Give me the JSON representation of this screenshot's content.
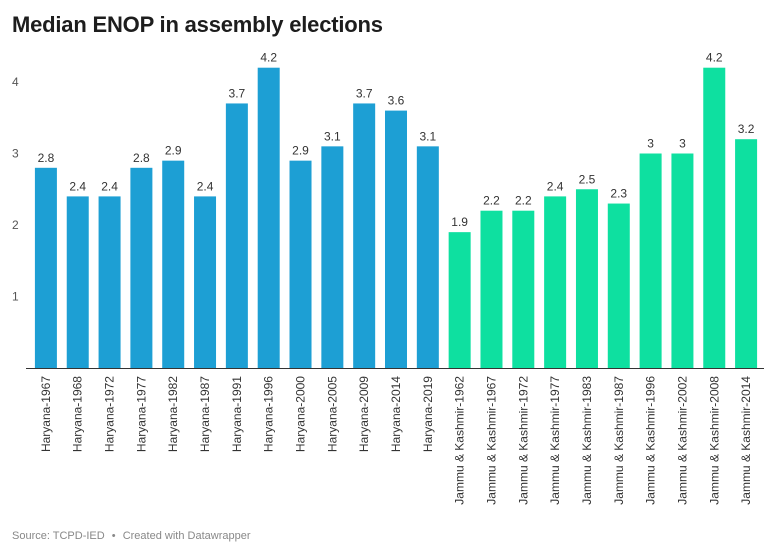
{
  "colors": {
    "haryana": "#1d9fd4",
    "jammu_kashmir": "#0ee0a0",
    "baseline": "#333333",
    "gridline": "#e6e6e6"
  },
  "chart_data": {
    "type": "bar",
    "title": "Median ENOP in assembly elections",
    "ylim": [
      0,
      4.2
    ],
    "y_ticks": [
      1,
      2,
      3,
      4
    ],
    "grid": "none",
    "categories": [
      "Haryana-1967",
      "Haryana-1968",
      "Haryana-1972",
      "Haryana-1977",
      "Haryana-1982",
      "Haryana-1987",
      "Haryana-1991",
      "Haryana-1996",
      "Haryana-2000",
      "Haryana-2005",
      "Haryana-2009",
      "Haryana-2014",
      "Haryana-2019",
      "Jammu & Kashmir-1962",
      "Jammu & Kashmir-1967",
      "Jammu & Kashmir-1972",
      "Jammu & Kashmir-1977",
      "Jammu & Kashmir-1983",
      "Jammu & Kashmir-1987",
      "Jammu & Kashmir-1996",
      "Jammu & Kashmir-2002",
      "Jammu & Kashmir-2008",
      "Jammu & Kashmir-2014"
    ],
    "values": [
      2.8,
      2.4,
      2.4,
      2.8,
      2.9,
      2.4,
      3.7,
      4.2,
      2.9,
      3.1,
      3.7,
      3.6,
      3.1,
      1.9,
      2.2,
      2.2,
      2.4,
      2.5,
      2.3,
      3,
      3,
      4.2,
      3.2
    ],
    "value_labels": [
      "2.8",
      "2.4",
      "2.4",
      "2.8",
      "2.9",
      "2.4",
      "3.7",
      "4.2",
      "2.9",
      "3.1",
      "3.7",
      "3.6",
      "3.1",
      "1.9",
      "2.2",
      "2.2",
      "2.4",
      "2.5",
      "2.3",
      "3",
      "3",
      "4.2",
      "3.2"
    ],
    "bar_groups": [
      "haryana",
      "haryana",
      "haryana",
      "haryana",
      "haryana",
      "haryana",
      "haryana",
      "haryana",
      "haryana",
      "haryana",
      "haryana",
      "haryana",
      "haryana",
      "jammu_kashmir",
      "jammu_kashmir",
      "jammu_kashmir",
      "jammu_kashmir",
      "jammu_kashmir",
      "jammu_kashmir",
      "jammu_kashmir",
      "jammu_kashmir",
      "jammu_kashmir",
      "jammu_kashmir"
    ]
  },
  "footer": {
    "source": "Source: TCPD-IED",
    "separator": "•",
    "created_with": "Created with Datawrapper"
  }
}
